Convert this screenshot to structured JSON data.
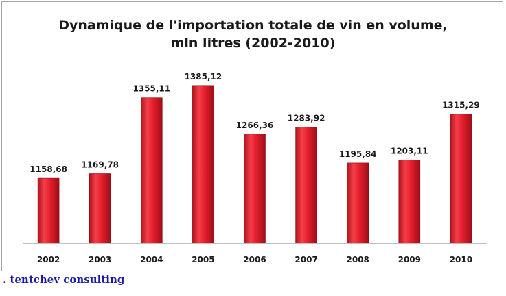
{
  "chart_data": {
    "type": "bar",
    "title_line1": "Dynamique de l'importation totale de vin en volume,",
    "title_line2": "mln litres (2002-2010)",
    "categories": [
      "2002",
      "2003",
      "2004",
      "2005",
      "2006",
      "2007",
      "2008",
      "2009",
      "2010"
    ],
    "values": [
      1158.68,
      1169.78,
      1355.11,
      1385.12,
      1266.36,
      1283.92,
      1195.84,
      1203.11,
      1315.29
    ],
    "value_labels": [
      "1158,68",
      "1169,78",
      "1355,11",
      "1385,12",
      "1266,36",
      "1283,92",
      "1195,84",
      "1203,11",
      "1315,29"
    ],
    "ylim": [
      1000,
      1450
    ],
    "grid": false,
    "legend": "none",
    "bar_color": "#e8202e"
  },
  "footer": {
    "link_text": ". tentchev consulting "
  }
}
